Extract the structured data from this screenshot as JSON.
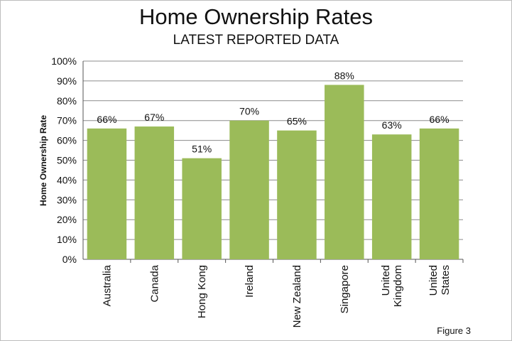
{
  "chart_data": {
    "type": "bar",
    "title": "Home Ownership Rates",
    "subtitle": "LATEST REPORTED DATA",
    "xlabel": "",
    "ylabel": "Home Ownership Rate",
    "categories": [
      [
        "Australia"
      ],
      [
        "Canada"
      ],
      [
        "Hong Kong"
      ],
      [
        "Ireland"
      ],
      [
        "New Zealand"
      ],
      [
        "Singapore"
      ],
      [
        "United",
        "Kingdom"
      ],
      [
        "United",
        "States"
      ]
    ],
    "values": [
      66,
      67,
      51,
      70,
      65,
      88,
      63,
      66
    ],
    "data_labels": [
      "66%",
      "67%",
      "51%",
      "70%",
      "65%",
      "88%",
      "63%",
      "66%"
    ],
    "y_ticks": [
      "0%",
      "10%",
      "20%",
      "30%",
      "40%",
      "50%",
      "60%",
      "70%",
      "80%",
      "90%",
      "100%"
    ],
    "ylim": [
      0,
      100
    ],
    "grid": true,
    "legend": "none",
    "bar_color": "#9bbb59",
    "grid_color": "#8c8c8c"
  },
  "footer": {
    "figure_label": "Figure 3"
  }
}
